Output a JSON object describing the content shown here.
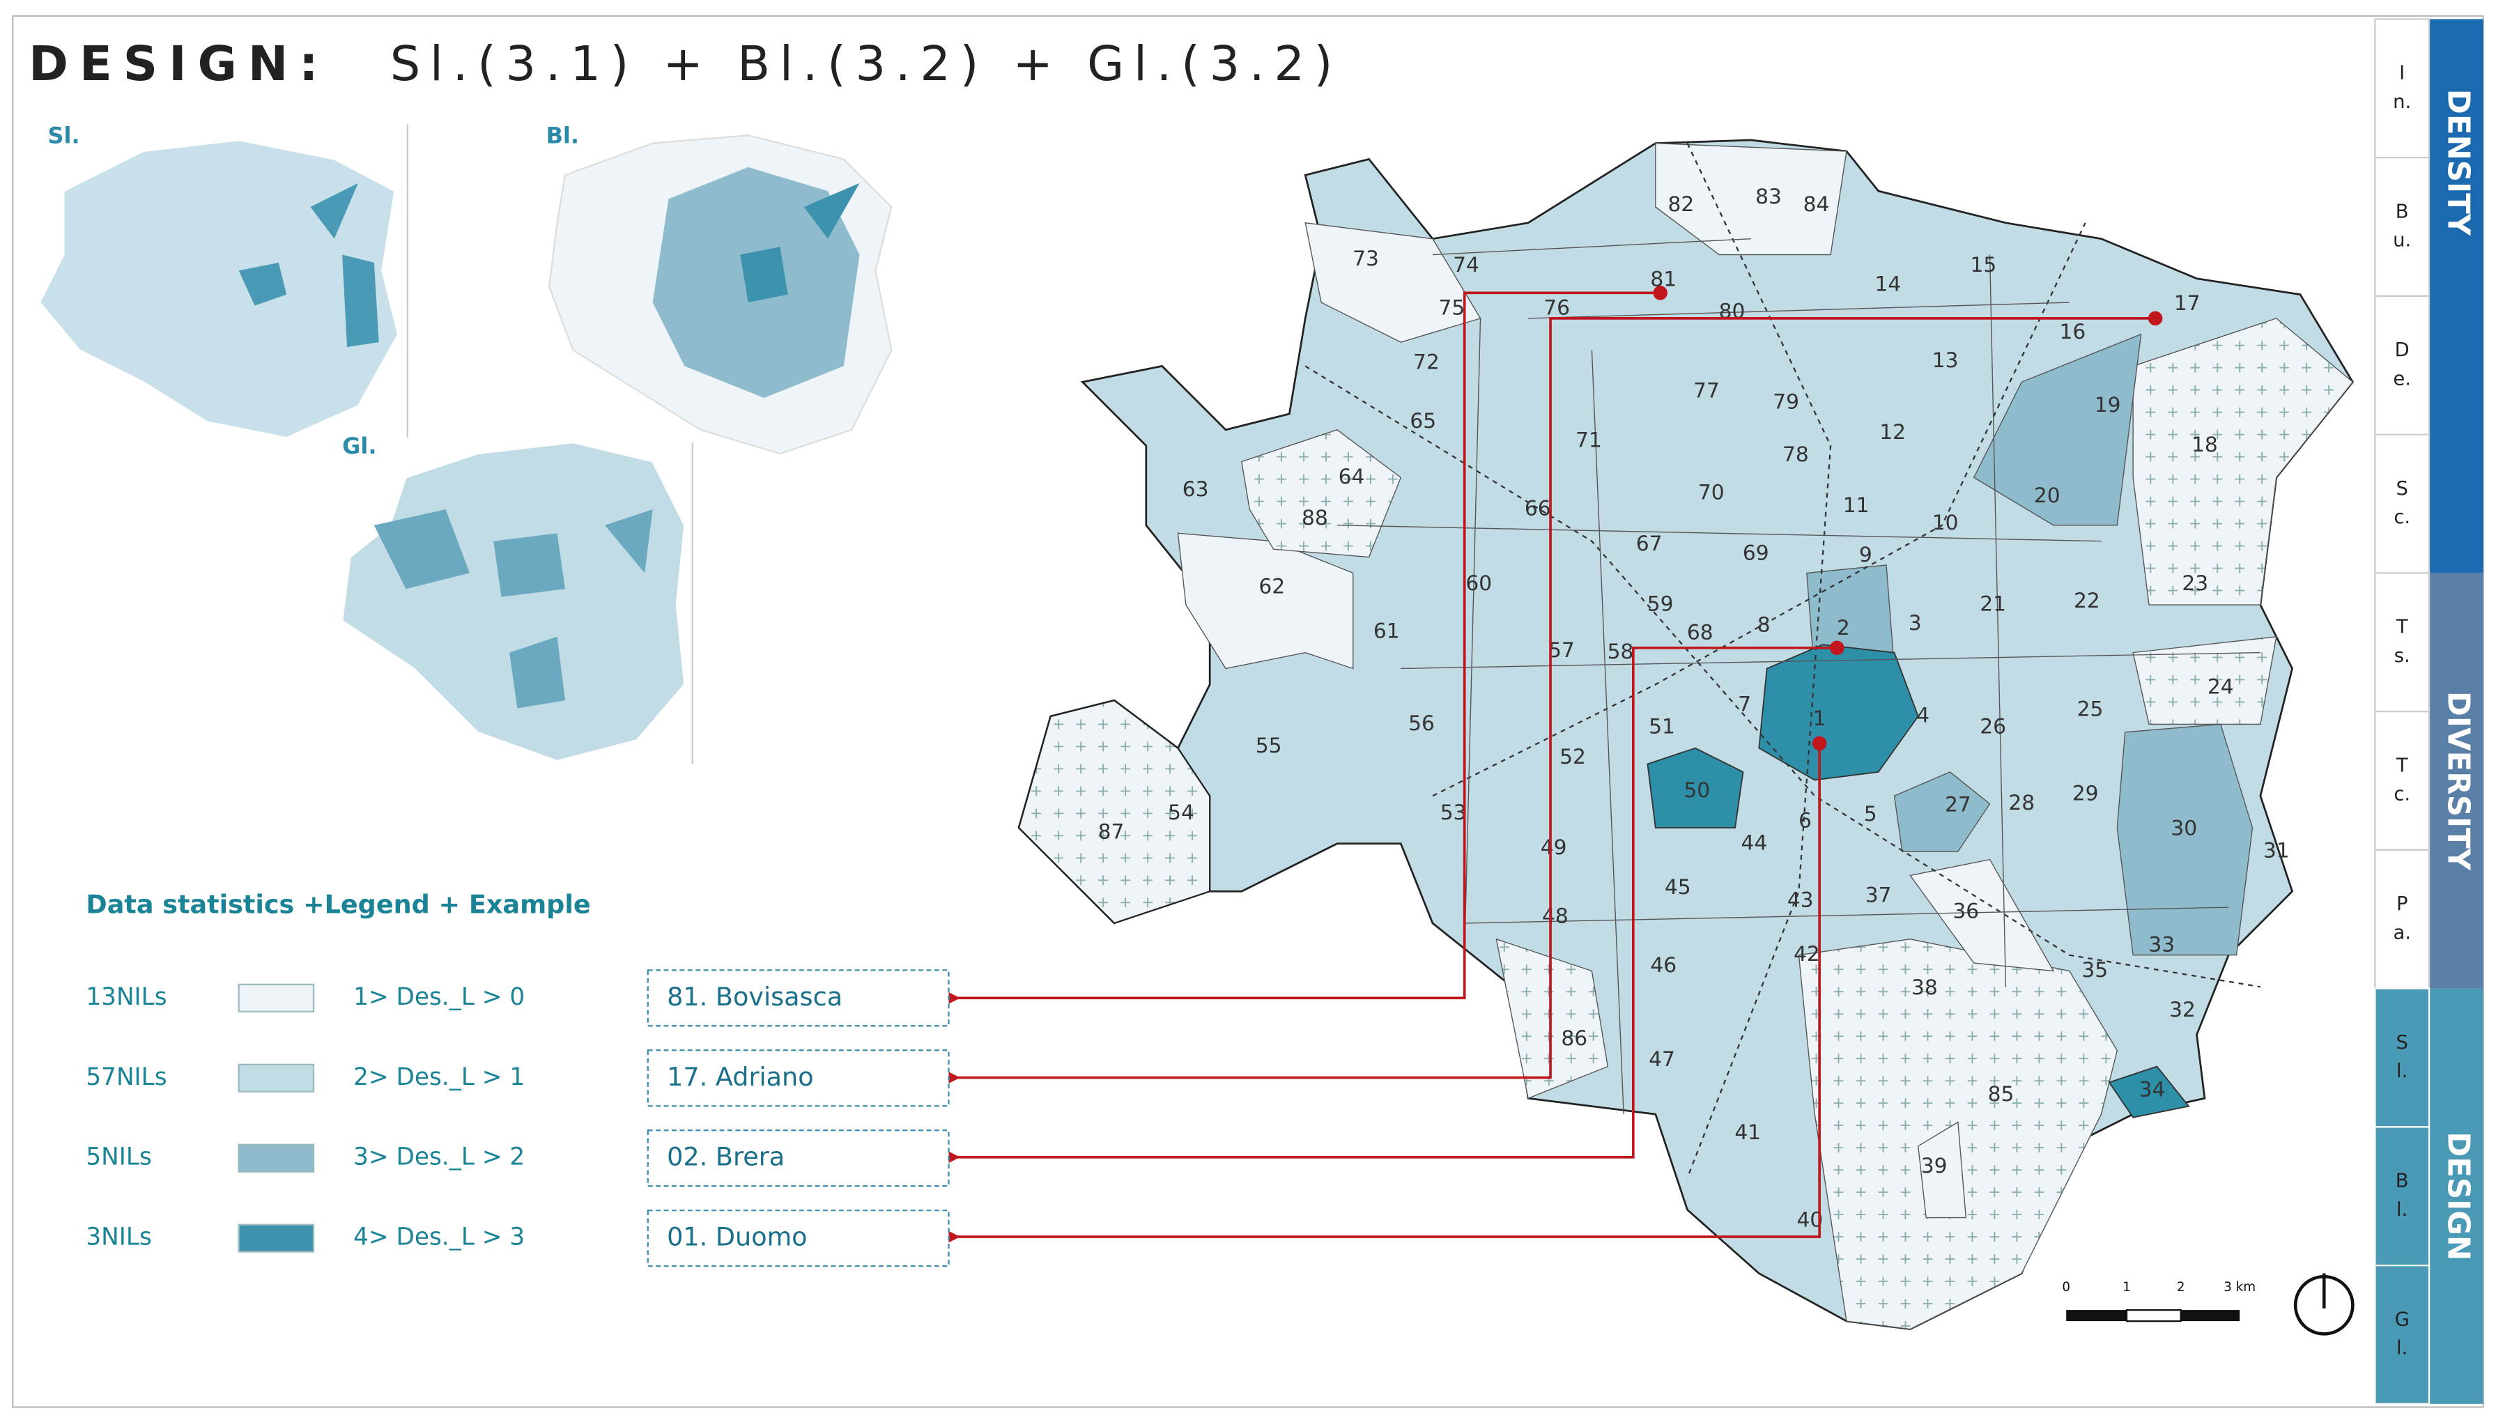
{
  "title": {
    "lead": "DESIGN:",
    "formula": "Sl.(3.1) + Bl.(3.2) + Gl.(3.2)"
  },
  "mini_maps": [
    "Sl.",
    "Bl.",
    "Gl."
  ],
  "legend": {
    "heading": "Data statistics +Legend + Example",
    "rows": [
      {
        "count": "13NILs",
        "range": "1> Des._L > 0",
        "color": "#eef4f7"
      },
      {
        "count": "57NILs",
        "range": "2> Des._L > 1",
        "color": "#c2dce6"
      },
      {
        "count": "5NILs",
        "range": "3> Des._L > 2",
        "color": "#8fbccd"
      },
      {
        "count": "3NILs",
        "range": "4> Des._L > 3",
        "color": "#3d93ad"
      }
    ]
  },
  "examples": [
    "81. Bovisasca",
    "17. Adriano",
    "02. Brera",
    "01. Duomo"
  ],
  "map_labels": [
    "1",
    "2",
    "3",
    "4",
    "5",
    "6",
    "7",
    "8",
    "9",
    "10",
    "11",
    "12",
    "13",
    "14",
    "15",
    "16",
    "17",
    "18",
    "19",
    "20",
    "21",
    "22",
    "23",
    "24",
    "25",
    "26",
    "27",
    "28",
    "29",
    "30",
    "31",
    "32",
    "33",
    "34",
    "35",
    "36",
    "37",
    "38",
    "39",
    "40",
    "41",
    "42",
    "43",
    "44",
    "45",
    "46",
    "47",
    "48",
    "49",
    "50",
    "51",
    "52",
    "53",
    "54",
    "55",
    "56",
    "57",
    "58",
    "59",
    "60",
    "61",
    "62",
    "63",
    "64",
    "65",
    "66",
    "67",
    "68",
    "69",
    "70",
    "71",
    "72",
    "73",
    "74",
    "75",
    "76",
    "77",
    "78",
    "79",
    "80",
    "81",
    "82",
    "83",
    "84",
    "85",
    "86",
    "87",
    "88"
  ],
  "scale": [
    "0",
    "1",
    "2",
    "3 km"
  ],
  "sidebar": [
    {
      "group": "DENSITY",
      "color": "#1b6ab0",
      "tabs": [
        [
          "I",
          "n."
        ],
        [
          "B",
          "u."
        ],
        [
          "D",
          "e."
        ],
        [
          "S",
          "c."
        ]
      ]
    },
    {
      "group": "DIVERSITY",
      "color": "#5a7fa6",
      "tabs": [
        [
          "T",
          "s."
        ],
        [
          "T",
          "c."
        ],
        [
          "P",
          "a."
        ]
      ]
    },
    {
      "group": "DESIGN",
      "color": "#4a9ab6",
      "tabs": [
        [
          "S",
          "l."
        ],
        [
          "B",
          "l."
        ],
        [
          "G",
          "l."
        ]
      ]
    }
  ]
}
